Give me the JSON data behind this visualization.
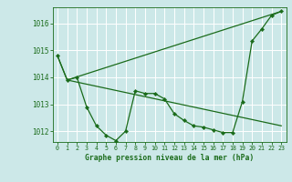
{
  "background_color": "#cce8e8",
  "grid_color": "#ffffff",
  "line_color": "#1a6b1a",
  "title": "Graphe pression niveau de la mer (hPa)",
  "xlim": [
    -0.5,
    23.5
  ],
  "ylim": [
    1011.6,
    1016.6
  ],
  "yticks": [
    1012,
    1013,
    1014,
    1015,
    1016
  ],
  "ytick_labels": [
    "1012",
    "1013",
    "1014",
    "1015",
    "1016"
  ],
  "xticks": [
    0,
    1,
    2,
    3,
    4,
    5,
    6,
    7,
    8,
    9,
    10,
    11,
    12,
    13,
    14,
    15,
    16,
    17,
    18,
    19,
    20,
    21,
    22,
    23
  ],
  "series1_x": [
    0,
    1,
    2,
    3,
    4,
    5,
    6,
    7,
    8,
    9,
    10,
    11,
    12,
    13,
    14,
    15,
    16,
    17,
    18,
    19,
    20,
    21,
    22,
    23
  ],
  "series1_y": [
    1014.8,
    1013.9,
    1014.0,
    1012.9,
    1012.2,
    1011.85,
    1011.65,
    1012.0,
    1013.5,
    1013.4,
    1013.4,
    1013.2,
    1012.65,
    1012.4,
    1012.2,
    1012.15,
    1012.05,
    1011.95,
    1011.95,
    1013.1,
    1015.35,
    1015.8,
    1016.3,
    1016.45
  ],
  "series2_x": [
    0,
    1,
    23
  ],
  "series2_y": [
    1014.8,
    1013.9,
    1016.45
  ],
  "series3_x": [
    1,
    23
  ],
  "series3_y": [
    1013.9,
    1012.2
  ]
}
